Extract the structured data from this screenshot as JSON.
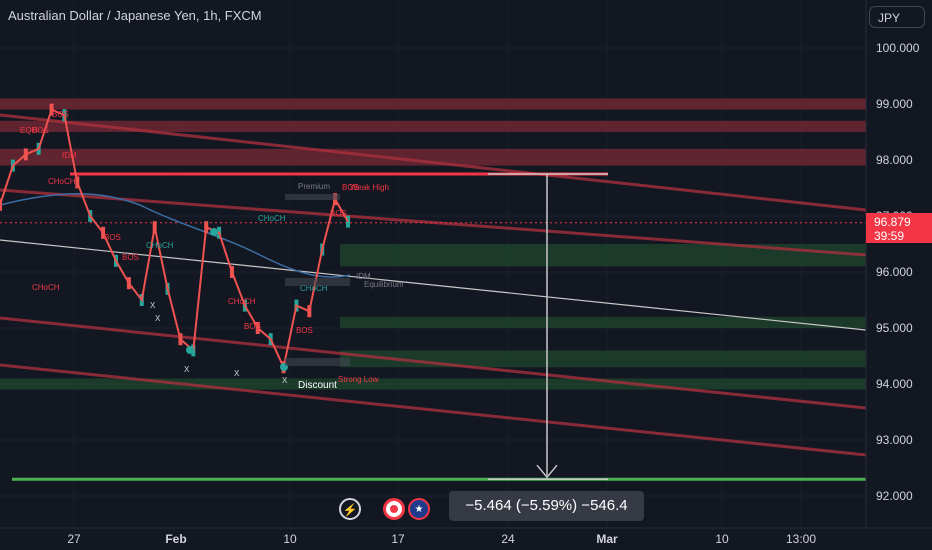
{
  "header": {
    "symbol_title": "Australian Dollar / Japanese Yen, 1h, FXCM",
    "currency_button": "JPY"
  },
  "price_tag": {
    "last": "96.879",
    "countdown": "39:59"
  },
  "measure_label": "−5.464 (−5.59%) −546.4",
  "colors": {
    "background": "#131722",
    "bear_line": "#f23645",
    "zone_red": "#7a2a35",
    "zone_green": "#1f4a2e",
    "target_line": "#4caf50",
    "ema": "#2962ff"
  },
  "icons": [
    "lightning-icon",
    "record-icon",
    "flag-australia-icon"
  ],
  "chart_data": {
    "type": "line",
    "title": "Australian Dollar / Japanese Yen, 1h, FXCM",
    "ylim": [
      91.9,
      100.7
    ],
    "y_ticks": [
      "100.000",
      "99.000",
      "98.000",
      "97.000",
      "96.000",
      "95.000",
      "94.000",
      "93.000",
      "92.000"
    ],
    "x_ticks": [
      "27",
      "Feb",
      "10",
      "17",
      "24",
      "Mar",
      "10",
      "13:00"
    ],
    "last_price": 96.879,
    "series": [
      {
        "values": [
          97.2,
          97.9,
          98.1,
          98.2,
          98.9,
          98.8,
          97.6,
          97.0,
          96.7,
          96.2,
          95.8,
          95.5,
          96.8,
          95.7,
          94.8,
          94.6,
          96.8,
          96.7,
          96.0,
          95.4,
          95.0,
          94.8,
          94.3,
          95.4,
          95.3,
          96.4,
          97.3,
          96.9
        ]
      }
    ],
    "zones": [
      {
        "kind": "supply",
        "from": 98.9,
        "to": 99.1
      },
      {
        "kind": "supply",
        "from": 98.5,
        "to": 98.7
      },
      {
        "kind": "supply",
        "from": 97.9,
        "to": 98.2
      },
      {
        "kind": "demand",
        "from": 96.1,
        "to": 96.5
      },
      {
        "kind": "demand",
        "from": 95.0,
        "to": 95.2
      },
      {
        "kind": "demand",
        "from": 94.3,
        "to": 94.6
      },
      {
        "kind": "demand",
        "from": 93.9,
        "to": 94.1
      }
    ],
    "levels": [
      {
        "name": "target-high",
        "value": 97.75
      },
      {
        "name": "target-low",
        "value": 92.3
      }
    ],
    "annotations": [
      "BOS",
      "CHoCH",
      "EQH",
      "IDM",
      "Premium",
      "Weak High",
      "Discount",
      "Strong Low",
      "Equilibrium",
      "X"
    ]
  }
}
